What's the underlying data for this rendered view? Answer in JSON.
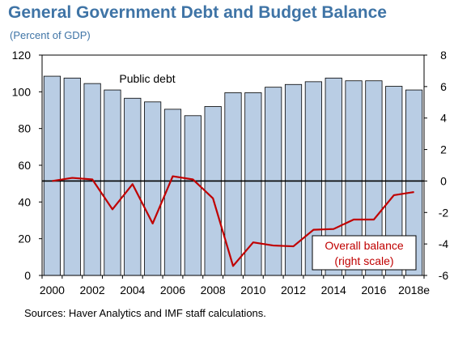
{
  "chart_data": {
    "type": "bar+line",
    "title": "General Government Debt and Budget Balance",
    "subtitle": "(Percent of GDP)",
    "source": "Sources: Haver Analytics and IMF staff calculations.",
    "x": [
      "2000",
      "2001",
      "2002",
      "2003",
      "2004",
      "2005",
      "2006",
      "2007",
      "2008",
      "2009",
      "2010",
      "2011",
      "2012",
      "2013",
      "2014",
      "2015",
      "2016",
      "2017",
      "2018e"
    ],
    "x_tick_labels": [
      "2000",
      "2002",
      "2004",
      "2006",
      "2008",
      "2010",
      "2012",
      "2014",
      "2016",
      "2018e"
    ],
    "left_axis": {
      "ylim": [
        0,
        120
      ],
      "ticks": [
        "0",
        "20",
        "40",
        "60",
        "80",
        "100",
        "120"
      ]
    },
    "right_axis": {
      "ylim": [
        -6,
        8
      ],
      "ticks": [
        "-6",
        "-4",
        "-2",
        "0",
        "2",
        "4",
        "6",
        "8"
      ]
    },
    "series": [
      {
        "name": "Public debt",
        "type": "bar",
        "axis": "left",
        "color": "#b9cde4",
        "values": [
          108.5,
          107.5,
          104.5,
          101,
          96.5,
          94.5,
          90.5,
          87,
          92,
          99.5,
          99.5,
          102.5,
          104,
          105.5,
          107.5,
          106,
          106,
          103,
          101
        ]
      },
      {
        "name": "Overall balance",
        "name_line2": "(right scale)",
        "type": "line",
        "axis": "right",
        "color": "#c00000",
        "values": [
          0.0,
          0.2,
          0.1,
          -1.8,
          -0.2,
          -2.7,
          0.3,
          0.1,
          -1.1,
          -5.4,
          -3.9,
          -4.1,
          -4.15,
          -3.1,
          -3.05,
          -2.45,
          -2.45,
          -0.9,
          -0.7
        ]
      }
    ],
    "reference_line": {
      "axis": "right",
      "value": 0
    },
    "grid": false
  }
}
